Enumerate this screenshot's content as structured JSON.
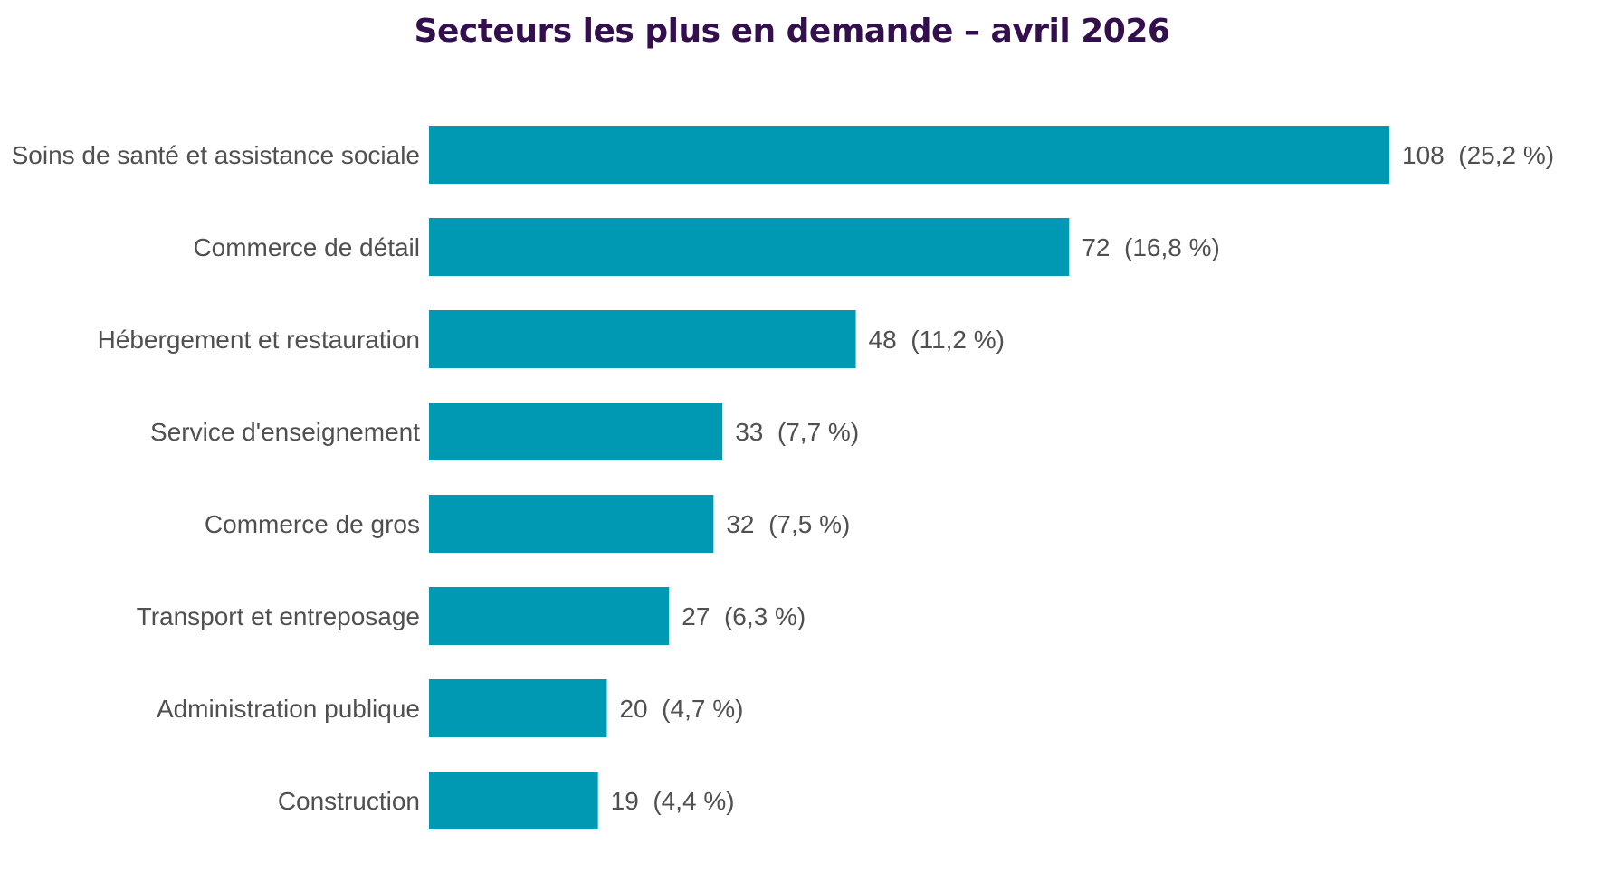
{
  "chart_data": {
    "type": "bar",
    "orientation": "horizontal",
    "title": "Secteurs les plus en demande – avril 2026",
    "xlabel": "",
    "ylabel": "",
    "grid": false,
    "legend": "none",
    "xlim": [
      0,
      108
    ],
    "categories": [
      "Soins de santé et assistance sociale",
      "Commerce de détail",
      "Hébergement et restauration",
      "Service d'enseignement",
      "Commerce de gros",
      "Transport et entreposage",
      "Administration publique",
      "Construction"
    ],
    "values": [
      108,
      72,
      48,
      33,
      32,
      27,
      20,
      19
    ],
    "data_labels": [
      "108  (25,2 %)",
      "72  (16,8 %)",
      "48  (11,2 %)",
      "33  (7,7 %)",
      "32  (7,5 %)",
      "27  (6,3 %)",
      "20  (4,7 %)",
      "19  (4,4 %)"
    ],
    "colors": {
      "bar": "#0099B4",
      "title": "#33104D",
      "text": "#505050"
    }
  }
}
